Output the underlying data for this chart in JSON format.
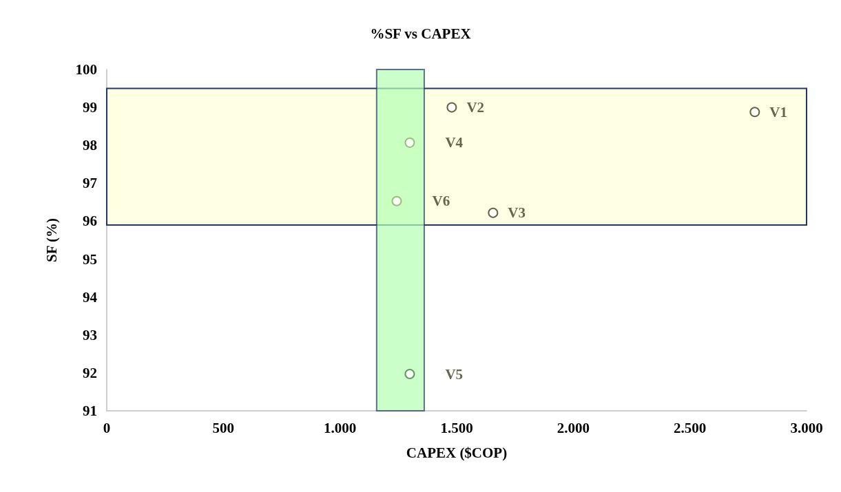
{
  "chart_data": {
    "type": "scatter",
    "title": "%SF vs CAPEX",
    "xlabel": "CAPEX ($COP)",
    "ylabel": "SF (%)",
    "series": [
      {
        "name": "V1",
        "color": "#3f3f27",
        "x": [
          2778
        ],
        "values": [
          98.88
        ]
      },
      {
        "name": "V2",
        "color": "#3f3f27",
        "x": [
          1479
        ],
        "values": [
          99.0
        ]
      },
      {
        "name": "V3",
        "color": "#3f3f27",
        "x": [
          1656
        ],
        "values": [
          96.22
        ]
      },
      {
        "name": "V4",
        "color": "#8aae6e",
        "x": [
          1299
        ],
        "values": [
          98.07
        ]
      },
      {
        "name": "V5",
        "color": "#4e7a4e",
        "x": [
          1299
        ],
        "values": [
          91.97
        ]
      },
      {
        "name": "V6",
        "color": "#8aae6e",
        "x": [
          1243
        ],
        "values": [
          96.53
        ]
      }
    ],
    "xlim": [
      0,
      3000
    ],
    "xticks": [
      0,
      500,
      {
        "value": 1000,
        "label": "1.000"
      },
      {
        "value": 1500,
        "label": "1.500"
      },
      {
        "value": 2000,
        "label": "2.000"
      },
      {
        "value": 2500,
        "label": "2.500"
      },
      {
        "value": 3000,
        "label": "3.000"
      }
    ],
    "ylim": [
      91,
      100
    ],
    "yticks": [
      91,
      92,
      93,
      94,
      95,
      96,
      97,
      98,
      99,
      100
    ],
    "bands": [
      {
        "axis": "y",
        "from": 95.9,
        "to": 99.5,
        "color": "#ffffe3"
      },
      {
        "axis": "x",
        "from": 1157,
        "to": 1361,
        "color": "#b3ffb3"
      }
    ],
    "grid": false,
    "legend": false,
    "marker": "circle"
  }
}
